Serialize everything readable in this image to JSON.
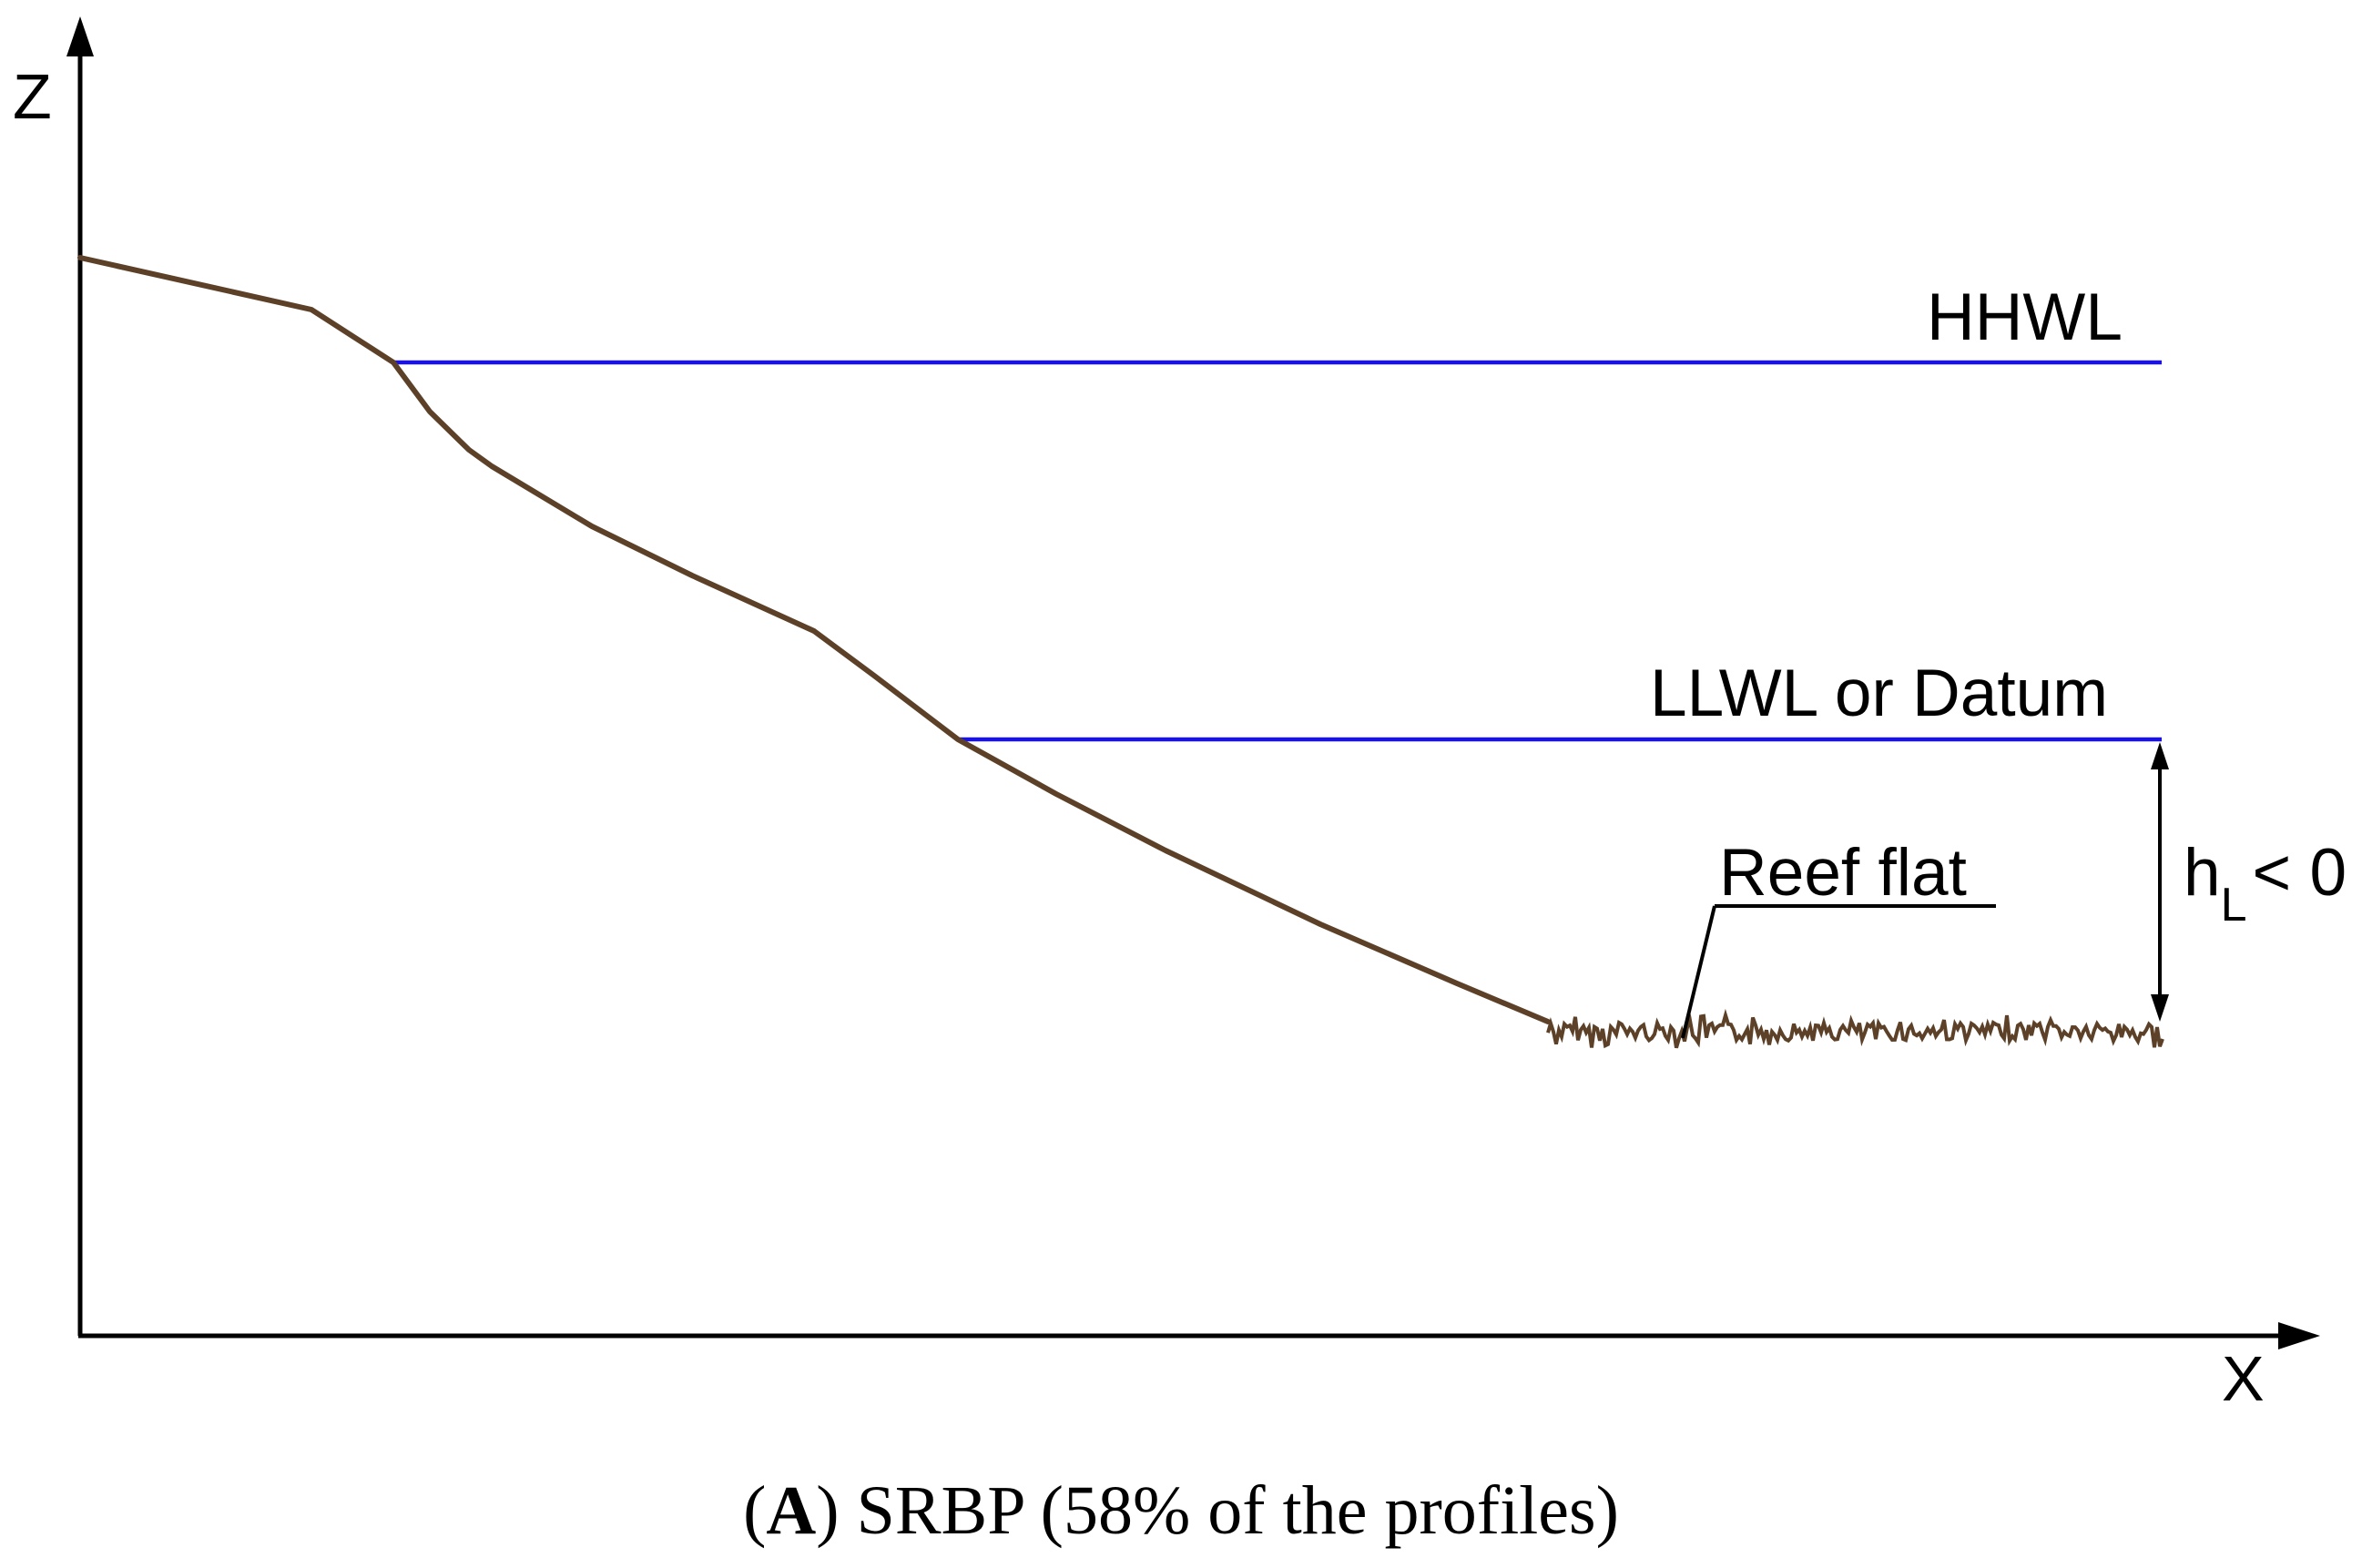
{
  "axes": {
    "z_label": "Z",
    "x_label": "X"
  },
  "levels": {
    "hhwl": "HHWL",
    "llwl": "LLWL or Datum"
  },
  "reef": {
    "label": "Reef flat"
  },
  "depth": {
    "symbol": "h",
    "subscript": "L",
    "relation": "< 0"
  },
  "caption": {
    "panel": "A",
    "open_paren": "(",
    "close_paren": ")",
    "text": " SRBP (58% of the profiles)"
  },
  "colors": {
    "profile": "#5c4128",
    "water_line": "#1a12e0",
    "axis": "#000000"
  }
}
